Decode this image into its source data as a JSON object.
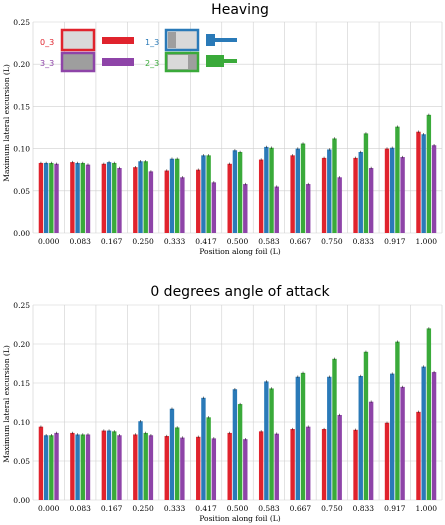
{
  "chart_data": [
    {
      "type": "bar",
      "title": "Heaving",
      "xlabel": "Position along foil (L)",
      "ylabel": "Maximum lateral excursion (L)",
      "ylim": [
        0,
        0.25
      ],
      "yticks": [
        "0.00",
        "0.05",
        "0.10",
        "0.15",
        "0.20",
        "0.25"
      ],
      "grid": true,
      "legend": "top-left",
      "categories": [
        "0.000",
        "0.083",
        "0.167",
        "0.250",
        "0.333",
        "0.417",
        "0.500",
        "0.583",
        "0.667",
        "0.750",
        "0.833",
        "0.917",
        "1.000"
      ],
      "series": [
        {
          "name": "0_3",
          "color": "#e0232d",
          "values": [
            0.083,
            0.084,
            0.082,
            0.078,
            0.074,
            0.075,
            0.082,
            0.087,
            0.092,
            0.089,
            0.089,
            0.1,
            0.12
          ]
        },
        {
          "name": "1_3",
          "color": "#2a7ab8",
          "values": [
            0.083,
            0.083,
            0.084,
            0.085,
            0.088,
            0.092,
            0.098,
            0.102,
            0.1,
            0.099,
            0.096,
            0.101,
            0.117
          ]
        },
        {
          "name": "2_3",
          "color": "#3aaa3a",
          "values": [
            0.083,
            0.083,
            0.083,
            0.085,
            0.088,
            0.092,
            0.096,
            0.101,
            0.106,
            0.112,
            0.118,
            0.126,
            0.14
          ]
        },
        {
          "name": "3_3",
          "color": "#8e44a8",
          "values": [
            0.082,
            0.081,
            0.077,
            0.073,
            0.066,
            0.06,
            0.058,
            0.055,
            0.058,
            0.066,
            0.077,
            0.09,
            0.104
          ]
        }
      ]
    },
    {
      "type": "bar",
      "title": "0 degrees angle of attack",
      "xlabel": "Position along foil (L)",
      "ylabel": "Maximum lateral excursion (L)",
      "ylim": [
        0,
        0.25
      ],
      "yticks": [
        "0.00",
        "0.05",
        "0.10",
        "0.15",
        "0.20",
        "0.25"
      ],
      "grid": true,
      "categories": [
        "0.000",
        "0.083",
        "0.167",
        "0.250",
        "0.333",
        "0.417",
        "0.500",
        "0.583",
        "0.667",
        "0.750",
        "0.833",
        "0.917",
        "1.000"
      ],
      "series": [
        {
          "name": "0_3",
          "color": "#e0232d",
          "values": [
            0.094,
            0.086,
            0.089,
            0.084,
            0.082,
            0.081,
            0.086,
            0.088,
            0.091,
            0.091,
            0.09,
            0.099,
            0.113
          ]
        },
        {
          "name": "1_3",
          "color": "#2a7ab8",
          "values": [
            0.083,
            0.084,
            0.089,
            0.101,
            0.117,
            0.131,
            0.142,
            0.152,
            0.158,
            0.158,
            0.159,
            0.162,
            0.171
          ]
        },
        {
          "name": "2_3",
          "color": "#3aaa3a",
          "values": [
            0.083,
            0.084,
            0.088,
            0.086,
            0.093,
            0.106,
            0.123,
            0.143,
            0.163,
            0.181,
            0.19,
            0.203,
            0.22
          ]
        },
        {
          "name": "3_3",
          "color": "#8e44a8",
          "values": [
            0.086,
            0.084,
            0.083,
            0.083,
            0.08,
            0.079,
            0.078,
            0.085,
            0.094,
            0.109,
            0.126,
            0.145,
            0.164
          ]
        }
      ]
    }
  ]
}
